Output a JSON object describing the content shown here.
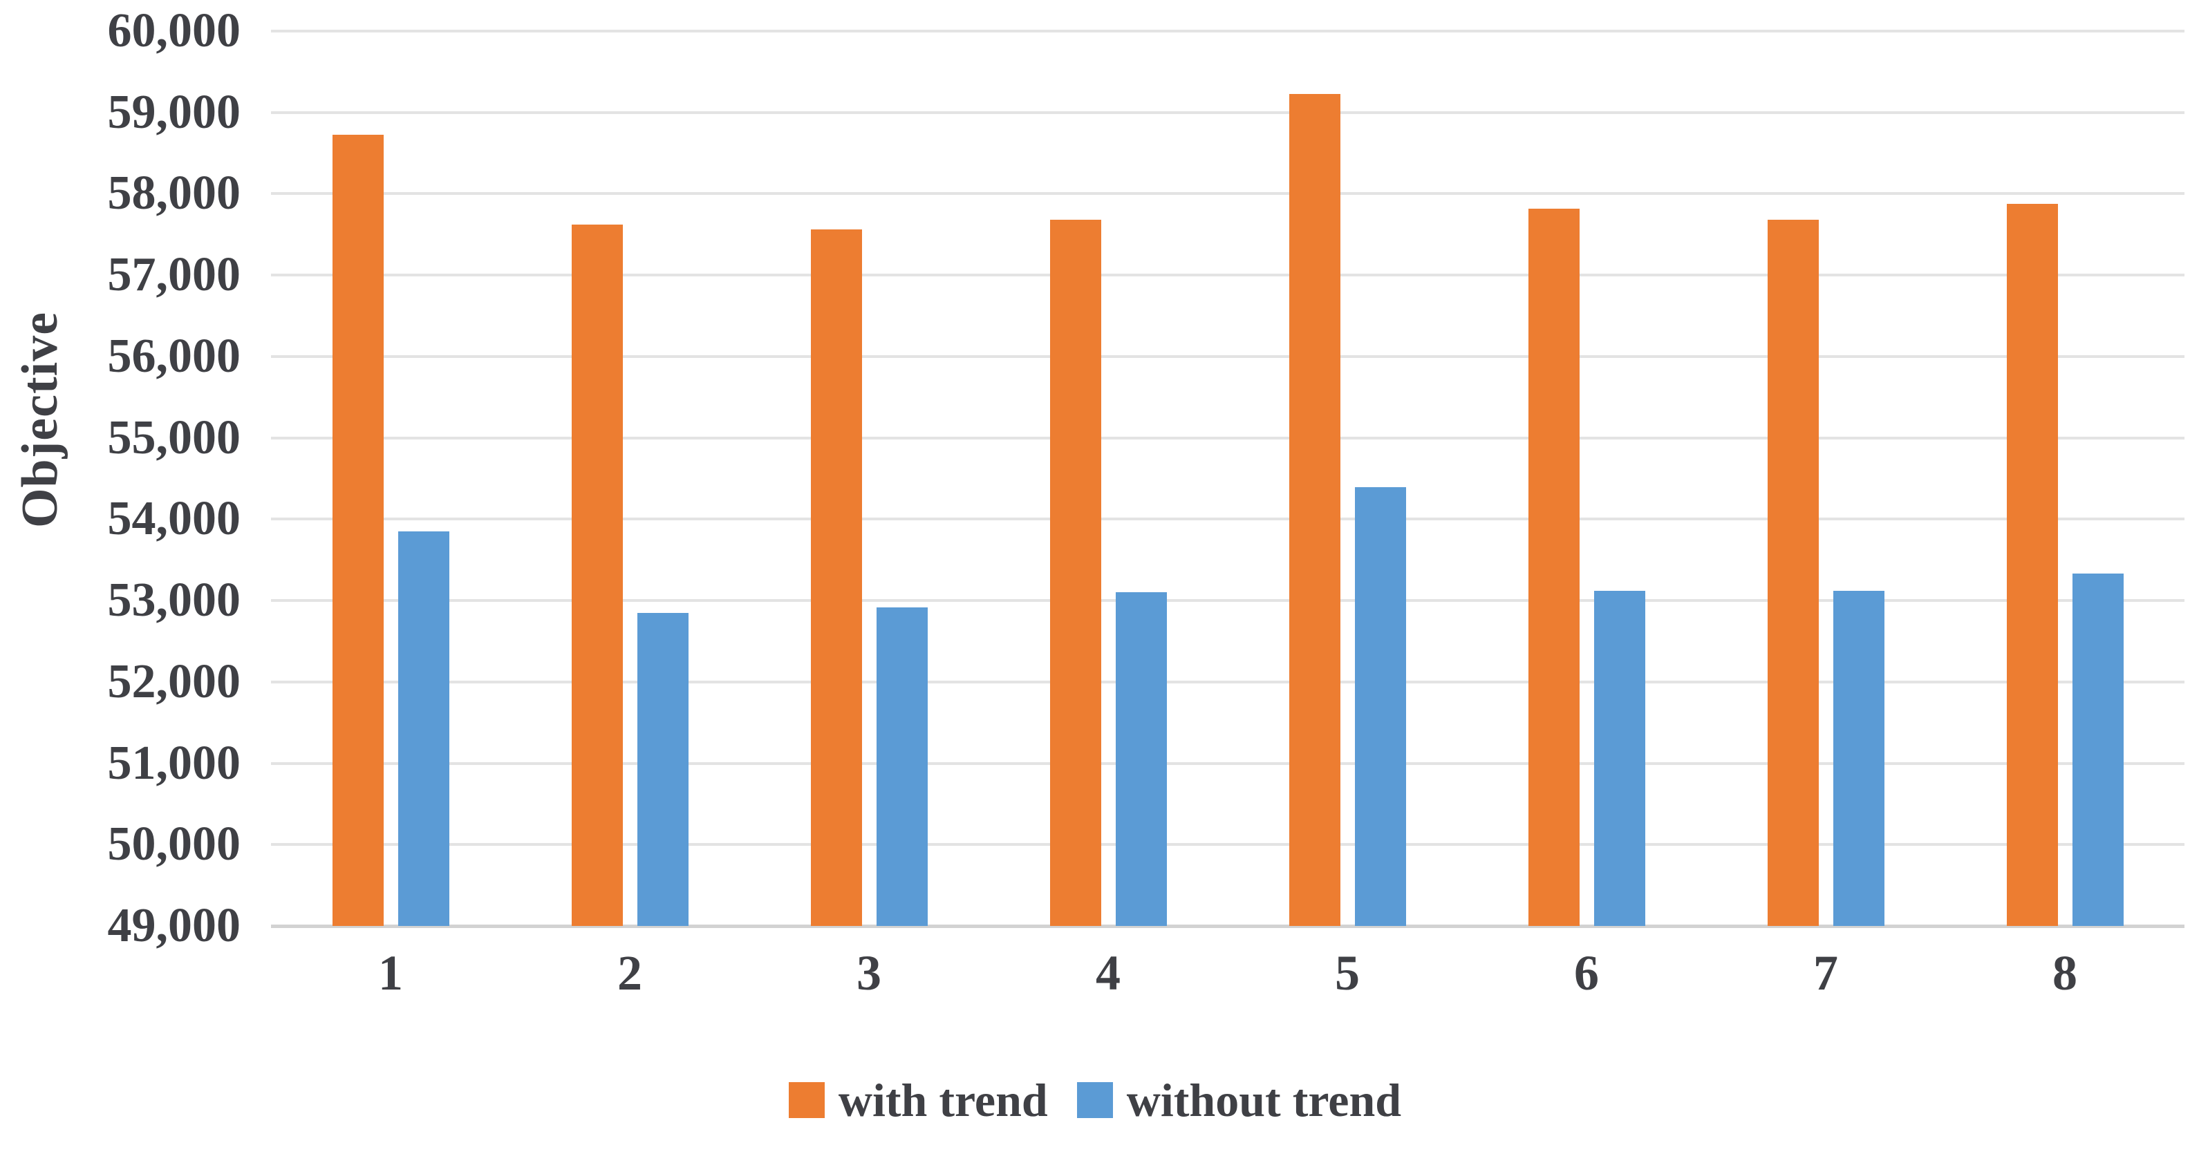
{
  "chart_data": {
    "type": "bar",
    "title": "",
    "xlabel": "",
    "ylabel": "Objective",
    "categories": [
      "1",
      "2",
      "3",
      "4",
      "5",
      "6",
      "7",
      "8"
    ],
    "series": [
      {
        "name": "with trend",
        "color": "#ED7D31",
        "values": [
          58730,
          57620,
          57560,
          57680,
          59230,
          57820,
          57680,
          57880
        ]
      },
      {
        "name": "without trend",
        "color": "#5B9BD5",
        "values": [
          53850,
          52850,
          52920,
          53100,
          54390,
          53120,
          53120,
          53330
        ]
      }
    ],
    "ylim": [
      49000,
      60000
    ],
    "ytick_step": 1000,
    "yticks": [
      "60,000",
      "59,000",
      "58,000",
      "57,000",
      "56,000",
      "55,000",
      "54,000",
      "53,000",
      "52,000",
      "51,000",
      "50,000",
      "49,000"
    ],
    "grid": true,
    "legend_position": "bottom",
    "background_color": "#FFFFFF",
    "gridline_color": "#E3E3E3",
    "text_color": "#3F4045"
  }
}
